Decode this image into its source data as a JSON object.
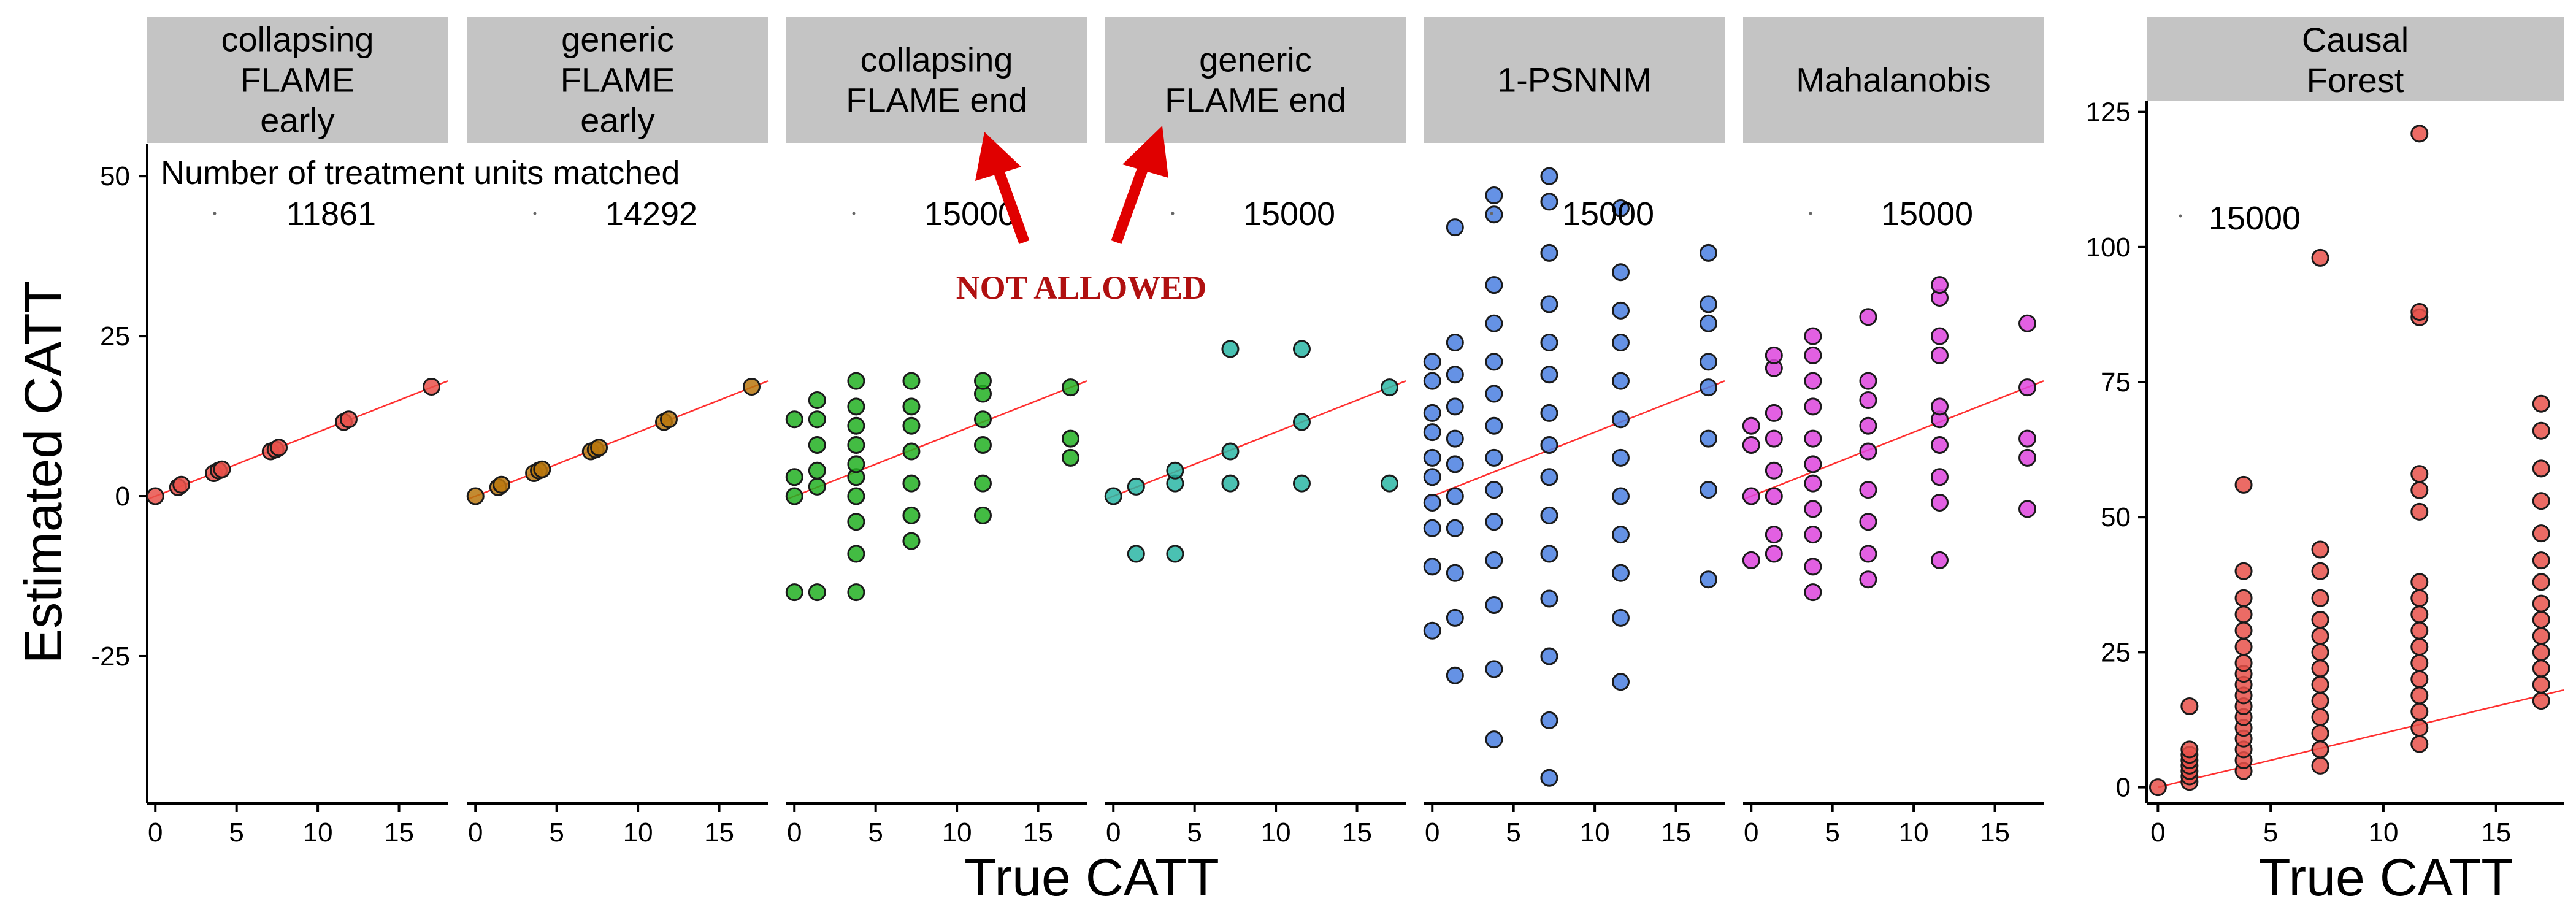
{
  "chart_data": {
    "type": "scatter",
    "ylabel": "Estimated CATT",
    "xlabel": "True CATT",
    "x_ticks": [
      0,
      5,
      10,
      15
    ],
    "panels_group": {
      "ylim": [
        -48,
        55
      ],
      "y_ticks": [
        -25,
        0,
        25,
        50
      ],
      "xlim": [
        -0.5,
        18
      ],
      "count_header": "Number of treatment units matched",
      "annotation": "NOT ALLOWED"
    },
    "panels": [
      {
        "name": "collapsing\nFLAME\nearly",
        "count": "11861",
        "color": "#e8514a",
        "points": [
          [
            0,
            0
          ],
          [
            1.4,
            1.4
          ],
          [
            1.6,
            1.8
          ],
          [
            3.6,
            3.6
          ],
          [
            3.9,
            4.0
          ],
          [
            4.1,
            4.2
          ],
          [
            7.1,
            7.0
          ],
          [
            7.4,
            7.3
          ],
          [
            7.6,
            7.6
          ],
          [
            11.6,
            11.6
          ],
          [
            11.9,
            12.0
          ],
          [
            17.0,
            17.1
          ]
        ]
      },
      {
        "name": "generic\nFLAME\nearly",
        "count": "14292",
        "color": "#b9770e",
        "points": [
          [
            0,
            0
          ],
          [
            1.4,
            1.4
          ],
          [
            1.6,
            1.8
          ],
          [
            3.6,
            3.6
          ],
          [
            3.9,
            4.0
          ],
          [
            4.1,
            4.2
          ],
          [
            7.1,
            7.0
          ],
          [
            7.4,
            7.3
          ],
          [
            7.6,
            7.6
          ],
          [
            11.6,
            11.6
          ],
          [
            11.9,
            12.0
          ],
          [
            17.0,
            17.1
          ]
        ]
      },
      {
        "name": "collapsing\nFLAME end",
        "count": "15000",
        "color": "#22b022",
        "points": [
          [
            0,
            -15
          ],
          [
            0,
            0
          ],
          [
            0,
            3
          ],
          [
            0,
            12
          ],
          [
            1.4,
            -15
          ],
          [
            1.4,
            1.5
          ],
          [
            1.4,
            4
          ],
          [
            1.4,
            8
          ],
          [
            1.4,
            12
          ],
          [
            1.4,
            15
          ],
          [
            3.8,
            -15
          ],
          [
            3.8,
            -9
          ],
          [
            3.8,
            -4
          ],
          [
            3.8,
            0
          ],
          [
            3.8,
            3
          ],
          [
            3.8,
            5
          ],
          [
            3.8,
            8
          ],
          [
            3.8,
            11
          ],
          [
            3.8,
            14
          ],
          [
            3.8,
            18
          ],
          [
            7.2,
            -7
          ],
          [
            7.2,
            -3
          ],
          [
            7.2,
            2
          ],
          [
            7.2,
            7
          ],
          [
            7.2,
            11
          ],
          [
            7.2,
            14
          ],
          [
            7.2,
            18
          ],
          [
            11.6,
            -3
          ],
          [
            11.6,
            2
          ],
          [
            11.6,
            8
          ],
          [
            11.6,
            12
          ],
          [
            11.6,
            16
          ],
          [
            11.6,
            18
          ],
          [
            17.0,
            6
          ],
          [
            17.0,
            9
          ],
          [
            17.0,
            17
          ]
        ]
      },
      {
        "name": "generic\nFLAME end",
        "count": "15000",
        "color": "#2ab6a4",
        "points": [
          [
            0,
            0
          ],
          [
            1.4,
            -9
          ],
          [
            1.4,
            1.5
          ],
          [
            3.8,
            -9
          ],
          [
            3.8,
            2
          ],
          [
            3.8,
            4
          ],
          [
            7.2,
            2
          ],
          [
            7.2,
            7
          ],
          [
            7.2,
            23
          ],
          [
            11.6,
            2
          ],
          [
            11.6,
            11.6
          ],
          [
            11.6,
            23
          ],
          [
            17.0,
            2
          ],
          [
            17.0,
            17
          ]
        ]
      },
      {
        "name": "1-PSNNM",
        "count": "15000",
        "color": "#4a7fe0",
        "points": [
          [
            0,
            -21
          ],
          [
            0,
            -11
          ],
          [
            0,
            -5
          ],
          [
            0,
            -1
          ],
          [
            0,
            3
          ],
          [
            0,
            6
          ],
          [
            0,
            10
          ],
          [
            0,
            13
          ],
          [
            0,
            18
          ],
          [
            0,
            21
          ],
          [
            1.4,
            -28
          ],
          [
            1.4,
            -19
          ],
          [
            1.4,
            -12
          ],
          [
            1.4,
            -5
          ],
          [
            1.4,
            0
          ],
          [
            1.4,
            5
          ],
          [
            1.4,
            9
          ],
          [
            1.4,
            14
          ],
          [
            1.4,
            19
          ],
          [
            1.4,
            24
          ],
          [
            1.4,
            42
          ],
          [
            3.8,
            -38
          ],
          [
            3.8,
            -27
          ],
          [
            3.8,
            -17
          ],
          [
            3.8,
            -10
          ],
          [
            3.8,
            -4
          ],
          [
            3.8,
            1
          ],
          [
            3.8,
            6
          ],
          [
            3.8,
            11
          ],
          [
            3.8,
            16
          ],
          [
            3.8,
            21
          ],
          [
            3.8,
            27
          ],
          [
            3.8,
            33
          ],
          [
            3.8,
            44
          ],
          [
            3.8,
            47
          ],
          [
            7.2,
            -44
          ],
          [
            7.2,
            -35
          ],
          [
            7.2,
            -25
          ],
          [
            7.2,
            -16
          ],
          [
            7.2,
            -9
          ],
          [
            7.2,
            -3
          ],
          [
            7.2,
            3
          ],
          [
            7.2,
            8
          ],
          [
            7.2,
            13
          ],
          [
            7.2,
            19
          ],
          [
            7.2,
            24
          ],
          [
            7.2,
            30
          ],
          [
            7.2,
            38
          ],
          [
            7.2,
            46
          ],
          [
            7.2,
            50
          ],
          [
            11.6,
            -29
          ],
          [
            11.6,
            -19
          ],
          [
            11.6,
            -12
          ],
          [
            11.6,
            -6
          ],
          [
            11.6,
            0
          ],
          [
            11.6,
            6
          ],
          [
            11.6,
            12
          ],
          [
            11.6,
            18
          ],
          [
            11.6,
            24
          ],
          [
            11.6,
            29
          ],
          [
            11.6,
            35
          ],
          [
            11.6,
            45
          ],
          [
            17.0,
            -13
          ],
          [
            17.0,
            1
          ],
          [
            17.0,
            9
          ],
          [
            17.0,
            17
          ],
          [
            17.0,
            21
          ],
          [
            17.0,
            27
          ],
          [
            17.0,
            30
          ],
          [
            17.0,
            38
          ]
        ]
      },
      {
        "name": "Mahalanobis",
        "count": "15000",
        "color": "#dd44dd",
        "points": [
          [
            0,
            -10
          ],
          [
            0,
            0
          ],
          [
            0,
            8
          ],
          [
            0,
            11
          ],
          [
            1.4,
            -9
          ],
          [
            1.4,
            -6
          ],
          [
            1.4,
            0
          ],
          [
            1.4,
            4
          ],
          [
            1.4,
            9
          ],
          [
            1.4,
            13
          ],
          [
            1.4,
            20
          ],
          [
            1.4,
            22
          ],
          [
            3.8,
            -15
          ],
          [
            3.8,
            -11
          ],
          [
            3.8,
            -6
          ],
          [
            3.8,
            -2
          ],
          [
            3.8,
            2
          ],
          [
            3.8,
            5
          ],
          [
            3.8,
            9
          ],
          [
            3.8,
            14
          ],
          [
            3.8,
            18
          ],
          [
            3.8,
            22
          ],
          [
            3.8,
            25
          ],
          [
            7.2,
            -13
          ],
          [
            7.2,
            -9
          ],
          [
            7.2,
            -4
          ],
          [
            7.2,
            1
          ],
          [
            7.2,
            7
          ],
          [
            7.2,
            11
          ],
          [
            7.2,
            15
          ],
          [
            7.2,
            18
          ],
          [
            7.2,
            28
          ],
          [
            11.6,
            -10
          ],
          [
            11.6,
            -1
          ],
          [
            11.6,
            3
          ],
          [
            11.6,
            8
          ],
          [
            11.6,
            12
          ],
          [
            11.6,
            14
          ],
          [
            11.6,
            22
          ],
          [
            11.6,
            25
          ],
          [
            11.6,
            31
          ],
          [
            11.6,
            33
          ],
          [
            17.0,
            -2
          ],
          [
            17.0,
            6
          ],
          [
            17.0,
            9
          ],
          [
            17.0,
            17
          ],
          [
            17.0,
            27
          ]
        ]
      }
    ],
    "single_panel": {
      "name": "Causal\nForest",
      "count": "15000",
      "color": "#e8514a",
      "ylim": [
        -3,
        127
      ],
      "y_ticks": [
        0,
        25,
        50,
        75,
        100,
        125
      ],
      "xlim": [
        -0.5,
        18
      ],
      "points": [
        [
          0,
          0
        ],
        [
          1.4,
          1
        ],
        [
          1.4,
          2
        ],
        [
          1.4,
          3
        ],
        [
          1.4,
          4
        ],
        [
          1.4,
          5
        ],
        [
          1.4,
          6
        ],
        [
          1.4,
          7
        ],
        [
          1.4,
          15
        ],
        [
          3.8,
          3
        ],
        [
          3.8,
          5
        ],
        [
          3.8,
          7
        ],
        [
          3.8,
          9
        ],
        [
          3.8,
          11
        ],
        [
          3.8,
          13
        ],
        [
          3.8,
          15
        ],
        [
          3.8,
          17
        ],
        [
          3.8,
          19
        ],
        [
          3.8,
          21
        ],
        [
          3.8,
          23
        ],
        [
          3.8,
          26
        ],
        [
          3.8,
          29
        ],
        [
          3.8,
          32
        ],
        [
          3.8,
          35
        ],
        [
          3.8,
          40
        ],
        [
          3.8,
          56
        ],
        [
          7.2,
          4
        ],
        [
          7.2,
          7
        ],
        [
          7.2,
          10
        ],
        [
          7.2,
          13
        ],
        [
          7.2,
          16
        ],
        [
          7.2,
          19
        ],
        [
          7.2,
          22
        ],
        [
          7.2,
          25
        ],
        [
          7.2,
          28
        ],
        [
          7.2,
          31
        ],
        [
          7.2,
          35
        ],
        [
          7.2,
          40
        ],
        [
          7.2,
          44
        ],
        [
          7.2,
          98
        ],
        [
          11.6,
          8
        ],
        [
          11.6,
          11
        ],
        [
          11.6,
          14
        ],
        [
          11.6,
          17
        ],
        [
          11.6,
          20
        ],
        [
          11.6,
          23
        ],
        [
          11.6,
          26
        ],
        [
          11.6,
          29
        ],
        [
          11.6,
          32
        ],
        [
          11.6,
          35
        ],
        [
          11.6,
          38
        ],
        [
          11.6,
          51
        ],
        [
          11.6,
          55
        ],
        [
          11.6,
          58
        ],
        [
          11.6,
          87
        ],
        [
          11.6,
          88
        ],
        [
          11.6,
          121
        ],
        [
          17.0,
          16
        ],
        [
          17.0,
          19
        ],
        [
          17.0,
          22
        ],
        [
          17.0,
          25
        ],
        [
          17.0,
          28
        ],
        [
          17.0,
          31
        ],
        [
          17.0,
          34
        ],
        [
          17.0,
          38
        ],
        [
          17.0,
          42
        ],
        [
          17.0,
          47
        ],
        [
          17.0,
          53
        ],
        [
          17.0,
          59
        ],
        [
          17.0,
          66
        ],
        [
          17.0,
          71
        ]
      ]
    }
  }
}
